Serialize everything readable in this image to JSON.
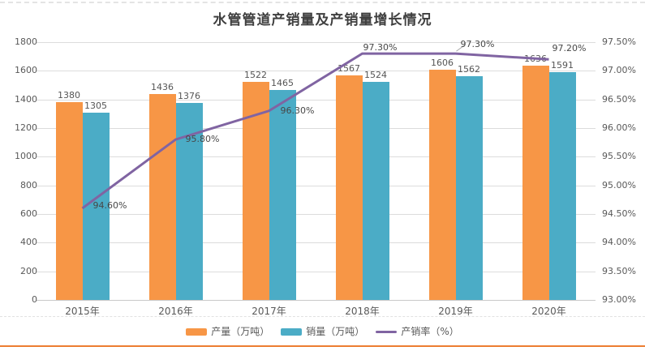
{
  "chart_data": {
    "type": "bar",
    "subtype": "bar+line-combo",
    "title": "水管管道产销量及产销量增长情况",
    "categories": [
      "2015年",
      "2016年",
      "2017年",
      "2018年",
      "2019年",
      "2020年"
    ],
    "series": [
      {
        "name": "产量（万吨）",
        "type": "bar",
        "axis": "left",
        "color": "#F79646",
        "values": [
          1380,
          1436,
          1522,
          1567,
          1606,
          1636
        ]
      },
      {
        "name": "销量（万吨）",
        "type": "bar",
        "axis": "left",
        "color": "#4BACC6",
        "values": [
          1305,
          1376,
          1465,
          1524,
          1562,
          1591
        ]
      },
      {
        "name": "产销率（%）",
        "type": "line",
        "axis": "right",
        "color": "#8064A2",
        "values": [
          94.6,
          95.8,
          96.3,
          97.3,
          97.3,
          97.2
        ],
        "point_labels": [
          "94.60%",
          "95.80%",
          "96.30%",
          "97.30%",
          "97.30%",
          "97.20%"
        ]
      }
    ],
    "left_axis": {
      "min": 0,
      "max": 1800,
      "step": 200,
      "ticks": [
        "0",
        "200",
        "400",
        "600",
        "800",
        "1000",
        "1200",
        "1400",
        "1600",
        "1800"
      ]
    },
    "right_axis": {
      "min": 93,
      "max": 97.5,
      "step": 0.5,
      "ticks": [
        "93.00%",
        "93.50%",
        "94.00%",
        "94.50%",
        "95.00%",
        "95.50%",
        "96.00%",
        "96.50%",
        "97.00%",
        "97.50%"
      ]
    },
    "grid": true,
    "legend_position": "bottom",
    "accent_rule_color": "#ED7D31"
  }
}
